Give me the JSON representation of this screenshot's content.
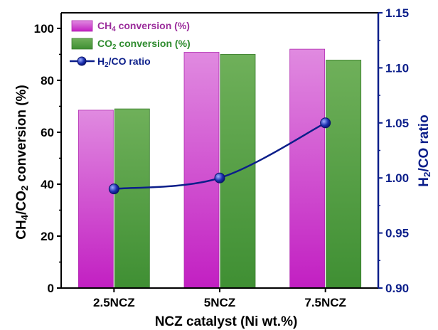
{
  "chart_data": {
    "type": "bar",
    "categories": [
      "2.5NCZ",
      "5NCZ",
      "7.5NCZ"
    ],
    "series": [
      {
        "name": "CH4 conversion (%)",
        "kind": "bar",
        "axis": "left",
        "color": "#cc33cc",
        "values": [
          68.5,
          90.8,
          92.0
        ]
      },
      {
        "name": "CO2 conversion (%)",
        "kind": "bar",
        "axis": "left",
        "color": "#4c9a3a",
        "values": [
          69.0,
          90.0,
          87.8
        ]
      },
      {
        "name": "H2/CO ratio",
        "kind": "line",
        "axis": "right",
        "color": "#0b1e8a",
        "values": [
          0.99,
          1.0,
          1.05
        ]
      }
    ],
    "legend_text": {
      "ch4": {
        "pre": "CH",
        "sub": "4",
        "post": " conversion (%)",
        "color": "#9b2d9b"
      },
      "co2": {
        "pre": "CO",
        "sub": "2",
        "post": " conversion (%)",
        "color": "#2e8b2e"
      },
      "ratio": {
        "pre": "H",
        "sub": "2",
        "post": "/CO ratio",
        "color": "#0b1e8a"
      }
    },
    "xlabel": "NCZ catalyst (Ni wt.%)",
    "ylabel": {
      "p1": "CH",
      "s1": "4",
      "p2": "/CO",
      "s2": "2",
      "p3": " conversion (%)"
    },
    "y2label": {
      "p1": "H",
      "s1": "2",
      "p2": "/CO ratio"
    },
    "ylim": [
      0,
      106
    ],
    "yticks": [
      "0",
      "20",
      "40",
      "60",
      "80",
      "100"
    ],
    "y2lim": [
      0.9,
      1.15
    ],
    "y2ticks": [
      "0.90",
      "0.95",
      "1.00",
      "1.05",
      "1.10",
      "1.15"
    ],
    "legend_position": "top-left",
    "grid": false
  }
}
